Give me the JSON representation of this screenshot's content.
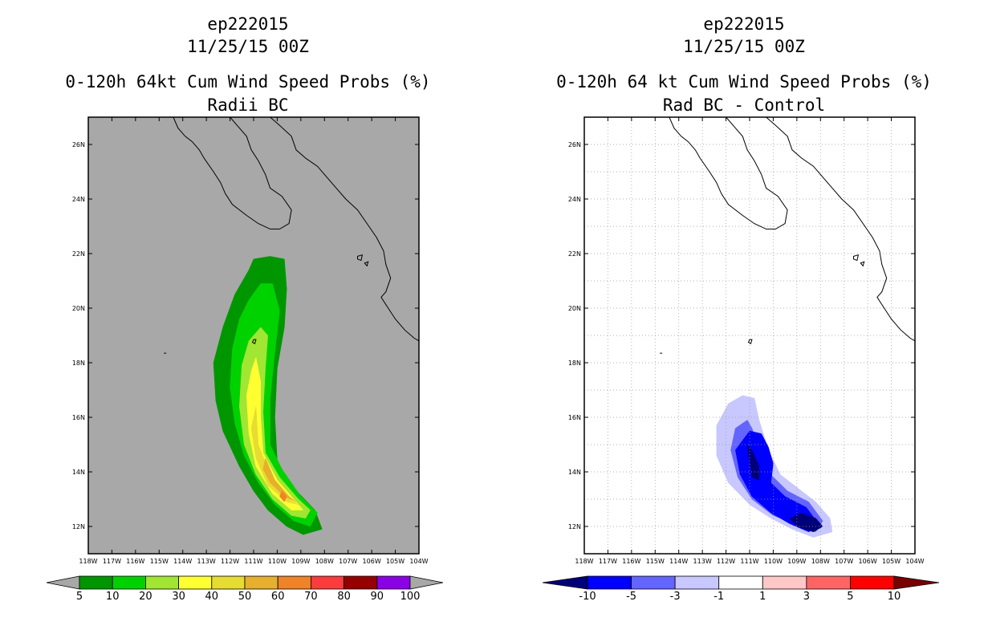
{
  "chart_data": [
    {
      "type": "contour-map",
      "storm_id": "ep222015",
      "datetime": "11/25/15 00Z",
      "title": "0-120h 64kt Cum Wind Speed Probs (%)",
      "subtitle": "Radii BC",
      "lon_range": [
        -118,
        -104
      ],
      "lat_range": [
        11,
        27
      ],
      "x_tick_labels": [
        "118W",
        "117W",
        "116W",
        "115W",
        "114W",
        "113W",
        "112W",
        "111W",
        "110W",
        "109W",
        "108W",
        "107W",
        "106W",
        "105W",
        "104W"
      ],
      "y_tick_labels": [
        "12N",
        "14N",
        "16N",
        "18N",
        "20N",
        "22N",
        "24N",
        "26N"
      ],
      "gridlines": false,
      "background": "#a8a8a8",
      "colorbar": {
        "labels": [
          "5",
          "10",
          "20",
          "30",
          "40",
          "50",
          "60",
          "70",
          "80",
          "90",
          "100"
        ],
        "colors": [
          "#009600",
          "#00d200",
          "#a0e632",
          "#ffff32",
          "#e6dc32",
          "#e6af2d",
          "#f08228",
          "#fa3c3c",
          "#960000",
          "#8c00e6"
        ],
        "end_colors": [
          "#a8a8a8",
          "#a8a8a8"
        ]
      },
      "levels": [
        {
          "min": 5,
          "color": "#009600",
          "outline": [
            [
              -111.0,
              21.8
            ],
            [
              -110.3,
              21.9
            ],
            [
              -109.7,
              21.8
            ],
            [
              -109.6,
              20.7
            ],
            [
              -109.7,
              19.3
            ],
            [
              -110.0,
              17.8
            ],
            [
              -110.1,
              16.0
            ],
            [
              -110.0,
              14.4
            ],
            [
              -109.4,
              13.5
            ],
            [
              -108.4,
              12.6
            ],
            [
              -108.1,
              11.9
            ],
            [
              -108.9,
              11.7
            ],
            [
              -109.6,
              12.0
            ],
            [
              -110.4,
              12.6
            ],
            [
              -111.0,
              13.3
            ],
            [
              -111.6,
              14.2
            ],
            [
              -112.3,
              15.5
            ],
            [
              -112.6,
              16.6
            ],
            [
              -112.7,
              18.0
            ],
            [
              -112.3,
              19.3
            ],
            [
              -111.8,
              20.5
            ],
            [
              -111.2,
              21.4
            ]
          ]
        },
        {
          "min": 10,
          "color": "#00d200",
          "outline": [
            [
              -110.7,
              20.9
            ],
            [
              -110.2,
              20.9
            ],
            [
              -109.9,
              19.9
            ],
            [
              -110.1,
              18.4
            ],
            [
              -110.3,
              16.7
            ],
            [
              -110.3,
              15.0
            ],
            [
              -109.8,
              14.1
            ],
            [
              -109.0,
              13.1
            ],
            [
              -108.3,
              12.5
            ],
            [
              -108.6,
              12.0
            ],
            [
              -109.3,
              12.2
            ],
            [
              -110.1,
              12.8
            ],
            [
              -110.8,
              13.6
            ],
            [
              -111.4,
              14.6
            ],
            [
              -111.8,
              15.8
            ],
            [
              -112.0,
              17.1
            ],
            [
              -111.9,
              18.5
            ],
            [
              -111.6,
              19.6
            ],
            [
              -111.2,
              20.3
            ]
          ]
        },
        {
          "min": 20,
          "color": "#a0e632",
          "outline": [
            [
              -110.7,
              19.3
            ],
            [
              -110.4,
              19.0
            ],
            [
              -110.5,
              17.8
            ],
            [
              -110.6,
              16.2
            ],
            [
              -110.5,
              14.7
            ],
            [
              -109.9,
              13.8
            ],
            [
              -109.1,
              13.0
            ],
            [
              -108.6,
              12.6
            ],
            [
              -108.8,
              12.3
            ],
            [
              -109.4,
              12.4
            ],
            [
              -110.2,
              13.0
            ],
            [
              -110.9,
              13.9
            ],
            [
              -111.4,
              15.0
            ],
            [
              -111.6,
              16.4
            ],
            [
              -111.5,
              17.9
            ],
            [
              -111.2,
              18.8
            ]
          ]
        },
        {
          "min": 30,
          "color": "#ffff32",
          "outline": [
            [
              -110.9,
              18.2
            ],
            [
              -110.7,
              17.3
            ],
            [
              -110.7,
              16.0
            ],
            [
              -110.6,
              14.7
            ],
            [
              -110.0,
              13.7
            ],
            [
              -109.2,
              12.9
            ],
            [
              -108.9,
              12.6
            ],
            [
              -109.4,
              12.6
            ],
            [
              -110.2,
              13.2
            ],
            [
              -110.9,
              14.2
            ],
            [
              -111.2,
              15.4
            ],
            [
              -111.3,
              16.8
            ],
            [
              -111.1,
              17.7
            ]
          ]
        },
        {
          "min": 40,
          "color": "#e6dc32",
          "outline": [
            [
              -110.9,
              16.4
            ],
            [
              -110.8,
              15.0
            ],
            [
              -110.3,
              13.9
            ],
            [
              -109.5,
              13.0
            ],
            [
              -109.1,
              12.8
            ],
            [
              -109.6,
              12.9
            ],
            [
              -110.4,
              13.5
            ],
            [
              -110.9,
              14.5
            ],
            [
              -111.1,
              15.6
            ]
          ]
        },
        {
          "min": 50,
          "color": "#e6af2d",
          "outline": [
            [
              -110.5,
              14.5
            ],
            [
              -110.1,
              13.7
            ],
            [
              -109.5,
              13.1
            ],
            [
              -109.2,
              12.9
            ],
            [
              -109.7,
              13.1
            ],
            [
              -110.3,
              13.6
            ],
            [
              -110.6,
              14.1
            ]
          ]
        },
        {
          "min": 60,
          "color": "#f08228",
          "outline": [
            [
              -109.8,
              13.3
            ],
            [
              -109.6,
              13.1
            ],
            [
              -109.7,
              12.9
            ],
            [
              -109.9,
              13.1
            ]
          ]
        }
      ]
    },
    {
      "type": "contour-map",
      "storm_id": "ep222015",
      "datetime": "11/25/15 00Z",
      "title": "0-120h 64 kt Cum Wind Speed Probs (%)",
      "subtitle": "Rad BC - Control",
      "lon_range": [
        -118,
        -104
      ],
      "lat_range": [
        11,
        27
      ],
      "x_tick_labels": [
        "118W",
        "117W",
        "116W",
        "115W",
        "114W",
        "113W",
        "112W",
        "111W",
        "110W",
        "109W",
        "108W",
        "107W",
        "106W",
        "105W",
        "104W"
      ],
      "y_tick_labels": [
        "12N",
        "14N",
        "16N",
        "18N",
        "20N",
        "22N",
        "24N",
        "26N"
      ],
      "gridlines": true,
      "background": "#ffffff",
      "colorbar": {
        "labels": [
          "-10",
          "-5",
          "-3",
          "-1",
          "1",
          "3",
          "5",
          "10"
        ],
        "colors": [
          "#0000ff",
          "#6464ff",
          "#c8c8ff",
          "#ffffff",
          "#ffc8c8",
          "#ff6464",
          "#ff0000"
        ],
        "end_colors": [
          "#000078",
          "#780000"
        ]
      },
      "levels": [
        {
          "max": -1,
          "color": "#c8c8ff",
          "outline": [
            [
              -111.3,
              16.8
            ],
            [
              -110.8,
              16.7
            ],
            [
              -110.6,
              15.9
            ],
            [
              -110.2,
              14.8
            ],
            [
              -109.7,
              13.9
            ],
            [
              -108.8,
              13.3
            ],
            [
              -108.2,
              12.9
            ],
            [
              -107.6,
              12.3
            ],
            [
              -107.5,
              11.8
            ],
            [
              -108.3,
              11.6
            ],
            [
              -109.2,
              11.9
            ],
            [
              -110.1,
              12.3
            ],
            [
              -111.0,
              12.8
            ],
            [
              -111.9,
              13.6
            ],
            [
              -112.4,
              14.6
            ],
            [
              -112.4,
              15.7
            ],
            [
              -111.9,
              16.5
            ]
          ]
        },
        {
          "max": -3,
          "color": "#6464ff",
          "outline": [
            [
              -111.1,
              15.9
            ],
            [
              -110.9,
              15.6
            ],
            [
              -110.6,
              14.9
            ],
            [
              -110.1,
              13.9
            ],
            [
              -109.4,
              13.3
            ],
            [
              -108.5,
              12.9
            ],
            [
              -107.9,
              12.2
            ],
            [
              -108.2,
              11.8
            ],
            [
              -109.1,
              12.1
            ],
            [
              -110.0,
              12.4
            ],
            [
              -110.9,
              13.0
            ],
            [
              -111.5,
              13.8
            ],
            [
              -111.8,
              14.8
            ],
            [
              -111.6,
              15.6
            ]
          ]
        },
        {
          "max": -5,
          "color": "#0000ff",
          "outline": [
            [
              -111.0,
              15.5
            ],
            [
              -110.5,
              15.4
            ],
            [
              -110.2,
              14.9
            ],
            [
              -110.0,
              14.3
            ],
            [
              -110.1,
              13.6
            ],
            [
              -109.5,
              13.1
            ],
            [
              -108.6,
              12.7
            ],
            [
              -108.0,
              12.0
            ],
            [
              -108.5,
              11.8
            ],
            [
              -109.3,
              12.1
            ],
            [
              -110.1,
              12.5
            ],
            [
              -110.9,
              13.1
            ],
            [
              -111.4,
              13.9
            ],
            [
              -111.6,
              14.8
            ]
          ]
        },
        {
          "max": -10,
          "color": "#000078",
          "outline": [
            [
              -111.1,
              15.0
            ],
            [
              -110.9,
              14.8
            ],
            [
              -110.6,
              14.2
            ],
            [
              -110.6,
              13.7
            ],
            [
              -110.9,
              13.8
            ],
            [
              -111.0,
              14.4
            ]
          ]
        },
        {
          "max": -10,
          "color": "#000078",
          "outline": [
            [
              -108.8,
              12.5
            ],
            [
              -108.2,
              12.3
            ],
            [
              -107.9,
              12.0
            ],
            [
              -108.3,
              11.8
            ],
            [
              -109.0,
              12.0
            ],
            [
              -109.3,
              12.3
            ]
          ]
        }
      ]
    }
  ]
}
